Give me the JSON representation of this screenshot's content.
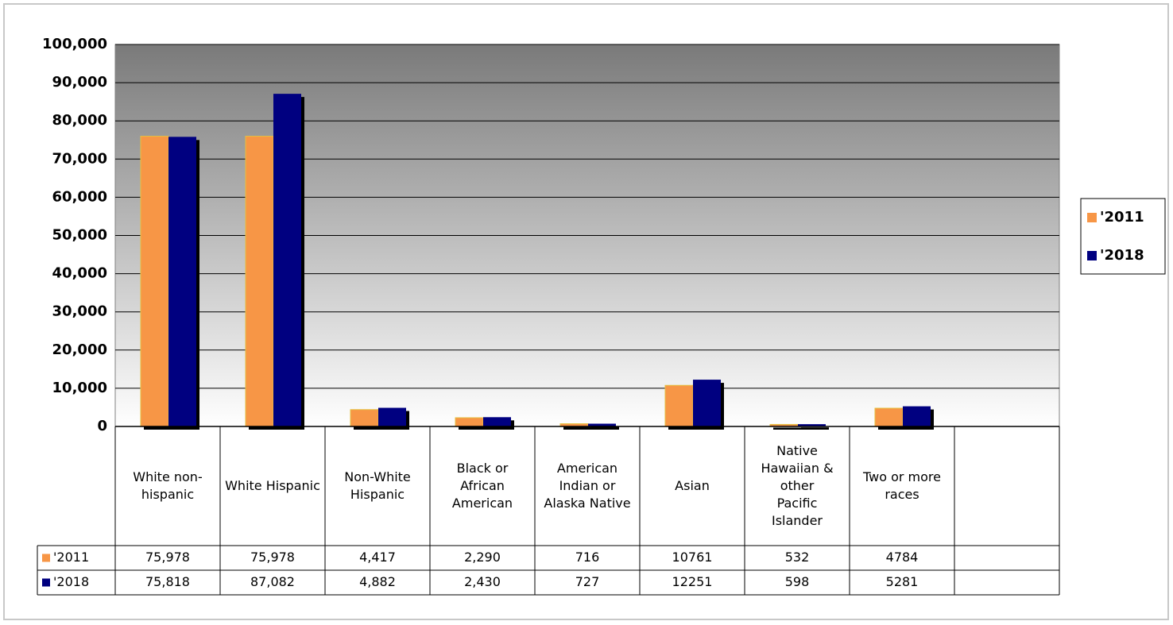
{
  "chart_data": {
    "type": "bar",
    "categories": [
      "White non-hispanic",
      "White Hispanic",
      "Non-White Hispanic",
      "Black or African American",
      "American Indian or Alaska Native",
      "Asian",
      "Native Hawaiian & other Pacific Islander",
      "Two or more races",
      null
    ],
    "series": [
      {
        "name": "'2011",
        "color": "#f79646",
        "values": [
          75978,
          75978,
          4417,
          2290,
          716,
          10761,
          532,
          4784,
          null
        ],
        "value_labels": [
          "75,978",
          "75,978",
          "4,417",
          "2,290",
          "716",
          "10761",
          "532",
          "4784",
          null
        ]
      },
      {
        "name": "'2018",
        "color": "#000080",
        "values": [
          75818,
          87082,
          4882,
          2430,
          727,
          12251,
          598,
          5281,
          null
        ],
        "value_labels": [
          "75,818",
          "87,082",
          "4,882",
          "2,430",
          "727",
          "12251",
          "598",
          "5281",
          null
        ]
      }
    ],
    "ylim": [
      0,
      100000
    ],
    "yticks": [
      0,
      {
        "value": 10000,
        "label": "10,000"
      },
      {
        "value": 20000,
        "label": "20,000"
      },
      {
        "value": 30000,
        "label": "30,000"
      },
      {
        "value": 40000,
        "label": "40,000"
      },
      {
        "value": 50000,
        "label": "50,000"
      },
      {
        "value": 60000,
        "label": "60,000"
      },
      {
        "value": 70000,
        "label": "70,000"
      },
      {
        "value": 80000,
        "label": "80,000"
      },
      {
        "value": 90000,
        "label": "90,000"
      },
      {
        "value": 100000,
        "label": "100,000"
      }
    ],
    "grid": true,
    "legend": "right",
    "data_table": true
  }
}
